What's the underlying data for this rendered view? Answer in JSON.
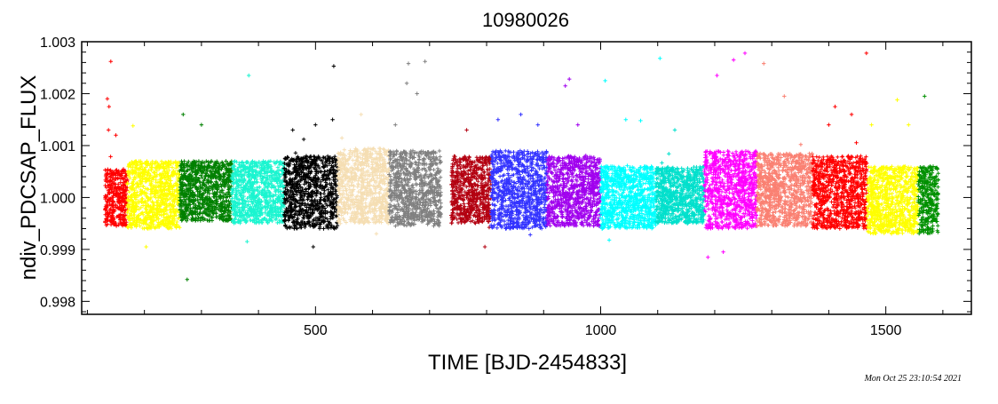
{
  "chart_data": {
    "type": "scatter",
    "title": "10980026",
    "xlabel": "TIME [BJD-2454833]",
    "ylabel": "ndiv_PDCSAP_FLUX",
    "xlim": [
      90,
      1650
    ],
    "ylim": [
      0.99775,
      1.003
    ],
    "xticks": [
      500,
      1000,
      1500
    ],
    "xtick_labels": [
      "500",
      "1000",
      "1500"
    ],
    "yticks": [
      0.998,
      0.999,
      1.0,
      1.001,
      1.002,
      1.003
    ],
    "ytick_labels": [
      "0.998",
      "0.999",
      "1.000",
      "1.001",
      "1.002",
      "1.003"
    ],
    "grid": false,
    "marker": "+",
    "series": [
      {
        "color": "#ff0000",
        "x_range": [
          131,
          170
        ],
        "core": [
          0.99945,
          1.00055
        ],
        "spread": [
          0.99925,
          1.00105
        ],
        "outliers": [
          [
            141,
            1.00262
          ],
          [
            135,
            1.0019
          ],
          [
            138,
            1.00175
          ],
          [
            137,
            1.0013
          ],
          [
            150,
            1.0012
          ]
        ]
      },
      {
        "color": "#ffff00",
        "x_range": [
          170,
          262
        ],
        "core": [
          0.9994,
          1.0007
        ],
        "spread": [
          0.9992,
          1.0013
        ],
        "outliers": [
          [
            203,
            0.99905
          ],
          [
            180,
            1.00138
          ]
        ]
      },
      {
        "color": "#008000",
        "x_range": [
          262,
          353
        ],
        "core": [
          0.99955,
          1.0007
        ],
        "spread": [
          0.99925,
          1.0013
        ],
        "outliers": [
          [
            275,
            0.99842
          ],
          [
            268,
            1.0016
          ],
          [
            300,
            1.0014
          ]
        ]
      },
      {
        "color": "#1af5d0",
        "x_range": [
          353,
          445
        ],
        "core": [
          0.9995,
          1.0007
        ],
        "spread": [
          0.9993,
          1.0011
        ],
        "outliers": [
          [
            383,
            1.00235
          ],
          [
            380,
            0.99915
          ]
        ]
      },
      {
        "color": "#000000",
        "x_range": [
          445,
          539
        ],
        "core": [
          0.9994,
          1.0008
        ],
        "spread": [
          0.9992,
          1.0013
        ],
        "outliers": [
          [
            532,
            1.00253
          ],
          [
            530,
            1.0015
          ],
          [
            500,
            1.0014
          ],
          [
            460,
            1.0013
          ],
          [
            496,
            0.99905
          ]
        ]
      },
      {
        "color": "#f5deb3",
        "x_range": [
          539,
          629
        ],
        "core": [
          0.9995,
          1.00095
        ],
        "spread": [
          0.99925,
          1.0012
        ],
        "outliers": [
          [
            580,
            1.0016
          ]
        ]
      },
      {
        "color": "#808080",
        "x_range": [
          629,
          720
        ],
        "core": [
          0.99945,
          1.0009
        ],
        "spread": [
          0.9992,
          1.00125
        ],
        "outliers": [
          [
            663,
            1.00258
          ],
          [
            692,
            1.00262
          ],
          [
            660,
            1.0022
          ],
          [
            678,
            1.002
          ],
          [
            640,
            1.0014
          ]
        ]
      },
      {
        "color": "#b30010",
        "x_range": [
          738,
          808
        ],
        "core": [
          0.9995,
          1.0008
        ],
        "spread": [
          0.9993,
          1.0011
        ],
        "outliers": [
          [
            765,
            1.0013
          ],
          [
            797,
            0.99905
          ]
        ]
      },
      {
        "color": "#3333ff",
        "x_range": [
          808,
          906
        ],
        "core": [
          0.9994,
          1.0009
        ],
        "spread": [
          0.99915,
          1.0013
        ],
        "outliers": [
          [
            860,
            1.0016
          ],
          [
            820,
            1.0015
          ],
          [
            890,
            1.0014
          ]
        ]
      },
      {
        "color": "#a000ee",
        "x_range": [
          906,
          1000
        ],
        "core": [
          0.99945,
          1.0008
        ],
        "spread": [
          0.9992,
          1.0012
        ],
        "outliers": [
          [
            945,
            1.00228
          ],
          [
            938,
            1.00215
          ],
          [
            960,
            1.0014
          ]
        ]
      },
      {
        "color": "#00ffff",
        "x_range": [
          1000,
          1097
        ],
        "core": [
          0.9994,
          1.0006
        ],
        "spread": [
          0.99925,
          1.0012
        ],
        "outliers": [
          [
            1104,
            1.00268
          ],
          [
            1008,
            1.00225
          ],
          [
            1044,
            1.0015
          ],
          [
            1070,
            1.00148
          ],
          [
            1015,
            0.99918
          ]
        ]
      },
      {
        "color": "#00e0cc",
        "x_range": [
          1097,
          1182
        ],
        "core": [
          0.9995,
          1.0006
        ],
        "spread": [
          0.9993,
          1.001
        ],
        "outliers": [
          [
            1130,
            1.0013
          ]
        ]
      },
      {
        "color": "#ff00ff",
        "x_range": [
          1182,
          1274
        ],
        "core": [
          0.9994,
          1.0009
        ],
        "spread": [
          0.9992,
          1.0012
        ],
        "outliers": [
          [
            1253,
            1.00278
          ],
          [
            1233,
            1.00265
          ],
          [
            1204,
            1.00235
          ],
          [
            1188,
            0.99885
          ],
          [
            1215,
            0.99895
          ]
        ]
      },
      {
        "color": "#fa8072",
        "x_range": [
          1274,
          1371
        ],
        "core": [
          0.99945,
          1.00085
        ],
        "spread": [
          0.99925,
          1.0011
        ],
        "outliers": [
          [
            1286,
            1.00258
          ],
          [
            1322,
            1.00195
          ]
        ]
      },
      {
        "color": "#ff0000",
        "x_range": [
          1371,
          1467
        ],
        "core": [
          0.9994,
          1.0008
        ],
        "spread": [
          0.99915,
          1.0011
        ],
        "outliers": [
          [
            1466,
            1.00278
          ],
          [
            1411,
            1.00175
          ],
          [
            1400,
            1.0014
          ],
          [
            1440,
            1.0016
          ]
        ]
      },
      {
        "color": "#ffff00",
        "x_range": [
          1467,
          1557
        ],
        "core": [
          0.9993,
          1.0006
        ],
        "spread": [
          0.99915,
          1.0011
        ],
        "outliers": [
          [
            1520,
            1.00188
          ],
          [
            1475,
            1.0014
          ],
          [
            1540,
            1.0014
          ]
        ]
      },
      {
        "color": "#009000",
        "x_range": [
          1557,
          1592
        ],
        "core": [
          0.9993,
          1.0006
        ],
        "spread": [
          0.99925,
          1.0009
        ],
        "outliers": [
          [
            1568,
            1.00195
          ]
        ]
      }
    ]
  },
  "timestamp": "Mon Oct 25 23:10:54 2021"
}
